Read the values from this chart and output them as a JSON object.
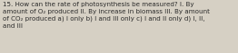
{
  "text": "15. How can the rate of photosynthesis be measured? I. By\namount of O₂ produced II. By increase in biomass III. By amount\nof CO₂ produced a) I only b) I and III only c) I and II only d) I, II,\nand III",
  "background_color": "#d6d0c4",
  "text_color": "#2a2a2a",
  "font_size": 5.1,
  "fig_width": 2.62,
  "fig_height": 0.59,
  "dpi": 100
}
